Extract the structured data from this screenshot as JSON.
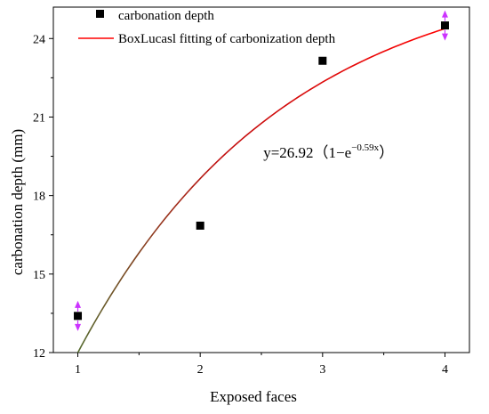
{
  "chart_data": {
    "type": "scatter",
    "xlabel": "Exposed faces",
    "ylabel": "carbonation depth (mm)",
    "xlim": [
      0.8,
      4.2
    ],
    "ylim": [
      12,
      25.2
    ],
    "x_ticks": [
      1,
      2,
      3,
      4
    ],
    "y_ticks": [
      12,
      15,
      18,
      21,
      24
    ],
    "grid": false,
    "legend_position": "top-left",
    "series": [
      {
        "name": "carbonation depth",
        "kind": "scatter",
        "color": "#000000",
        "x": [
          1,
          2,
          3,
          4
        ],
        "y": [
          13.4,
          16.85,
          23.15,
          24.5
        ]
      },
      {
        "name": "BoxLucasl fitting of carbonization depth",
        "kind": "line",
        "color": "#ff0000",
        "color_start": "#556b2f",
        "equation": {
          "A": 26.92,
          "k": 0.59,
          "x_start": 1,
          "x_end": 4
        }
      }
    ],
    "error_markers": {
      "color": "#cc33ff",
      "points": [
        {
          "x": 1,
          "y": 13.4
        },
        {
          "x": 4,
          "y": 24.5
        }
      ]
    },
    "annotation": {
      "prefix": "y=26.92（1−e",
      "superscript": "−0.59x",
      "suffix": "）",
      "x": 3.05,
      "y": 19.45
    }
  }
}
